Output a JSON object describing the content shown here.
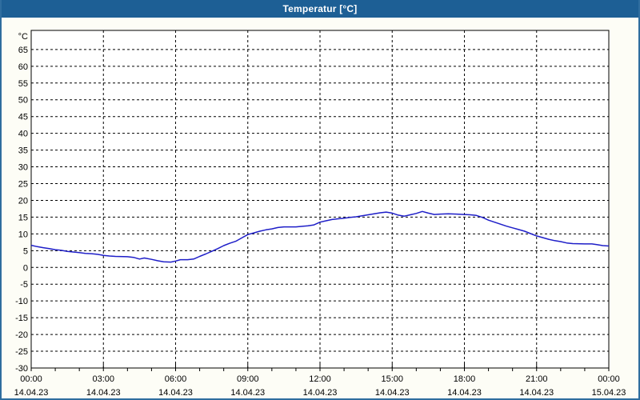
{
  "window": {
    "title": "Temperatur [°C]",
    "title_bar_color": "#1d5f95",
    "frame_border_color": "#2f6d9f",
    "panel_bg": "#fdfdf6"
  },
  "chart_data": {
    "type": "line",
    "title": "Temperatur [°C]",
    "ylabel": "°C",
    "xlabel": "",
    "grid": "dashed-black",
    "legend": "none",
    "plot_bg": "#ffffff",
    "ylim": [
      -30,
      70.7
    ],
    "xlim_hours": [
      0,
      24
    ],
    "y_ticks": [
      65,
      60,
      55,
      50,
      45,
      40,
      35,
      30,
      25,
      20,
      15,
      10,
      5,
      0,
      -5,
      -10,
      -15,
      -20,
      -25,
      -30
    ],
    "x_minor_tick_hours": 1,
    "x_ticks": [
      {
        "hour": 0,
        "time": "00:00",
        "date": "14.04.23"
      },
      {
        "hour": 3,
        "time": "03:00",
        "date": "14.04.23"
      },
      {
        "hour": 6,
        "time": "06:00",
        "date": "14.04.23"
      },
      {
        "hour": 9,
        "time": "09:00",
        "date": "14.04.23"
      },
      {
        "hour": 12,
        "time": "12:00",
        "date": "14.04.23"
      },
      {
        "hour": 15,
        "time": "15:00",
        "date": "14.04.23"
      },
      {
        "hour": 18,
        "time": "18:00",
        "date": "14.04.23"
      },
      {
        "hour": 21,
        "time": "21:00",
        "date": "14.04.23"
      },
      {
        "hour": 24,
        "time": "00:00",
        "date": "15.04.23"
      }
    ],
    "series": [
      {
        "name": "Temperatur",
        "color": "#1e1ec8",
        "points": [
          [
            0,
            6.6
          ],
          [
            0.25,
            6.2
          ],
          [
            0.5,
            5.9
          ],
          [
            0.75,
            5.6
          ],
          [
            1,
            5.3
          ],
          [
            1.25,
            5.1
          ],
          [
            1.5,
            4.8
          ],
          [
            1.75,
            4.6
          ],
          [
            2,
            4.4
          ],
          [
            2.25,
            4.2
          ],
          [
            2.5,
            4.1
          ],
          [
            2.75,
            3.9
          ],
          [
            3,
            3.6
          ],
          [
            3.25,
            3.4
          ],
          [
            3.5,
            3.3
          ],
          [
            4,
            3.2
          ],
          [
            4.25,
            3.0
          ],
          [
            4.5,
            2.5
          ],
          [
            4.7,
            2.8
          ],
          [
            5,
            2.4
          ],
          [
            5.25,
            2.0
          ],
          [
            5.5,
            1.7
          ],
          [
            5.8,
            1.6
          ],
          [
            6,
            1.9
          ],
          [
            6.2,
            2.3
          ],
          [
            6.5,
            2.3
          ],
          [
            6.75,
            2.5
          ],
          [
            7,
            3.3
          ],
          [
            7.25,
            4.0
          ],
          [
            7.5,
            4.8
          ],
          [
            7.75,
            5.6
          ],
          [
            8,
            6.5
          ],
          [
            8.25,
            7.2
          ],
          [
            8.5,
            7.8
          ],
          [
            8.75,
            8.8
          ],
          [
            9,
            9.8
          ],
          [
            9.25,
            10.3
          ],
          [
            9.5,
            10.8
          ],
          [
            9.75,
            11.2
          ],
          [
            10,
            11.5
          ],
          [
            10.25,
            11.9
          ],
          [
            10.5,
            12.1
          ],
          [
            11,
            12.1
          ],
          [
            11.5,
            12.4
          ],
          [
            11.75,
            12.7
          ],
          [
            12,
            13.5
          ],
          [
            12.25,
            13.9
          ],
          [
            12.5,
            14.3
          ],
          [
            12.75,
            14.5
          ],
          [
            13,
            14.7
          ],
          [
            13.25,
            14.9
          ],
          [
            13.5,
            15.1
          ],
          [
            13.75,
            15.4
          ],
          [
            14,
            15.7
          ],
          [
            14.25,
            16.0
          ],
          [
            14.5,
            16.3
          ],
          [
            14.75,
            16.5
          ],
          [
            15,
            16.2
          ],
          [
            15.25,
            15.6
          ],
          [
            15.5,
            15.3
          ],
          [
            15.75,
            15.7
          ],
          [
            16,
            16.1
          ],
          [
            16.25,
            16.7
          ],
          [
            16.5,
            16.2
          ],
          [
            16.75,
            15.8
          ],
          [
            17,
            15.9
          ],
          [
            17.33,
            16.0
          ],
          [
            17.67,
            15.9
          ],
          [
            18,
            15.8
          ],
          [
            18.25,
            15.7
          ],
          [
            18.5,
            15.5
          ],
          [
            18.75,
            14.9
          ],
          [
            19,
            14.1
          ],
          [
            19.25,
            13.5
          ],
          [
            19.5,
            12.9
          ],
          [
            19.75,
            12.3
          ],
          [
            20,
            11.8
          ],
          [
            20.25,
            11.3
          ],
          [
            20.5,
            10.8
          ],
          [
            20.75,
            10.1
          ],
          [
            21,
            9.4
          ],
          [
            21.25,
            8.9
          ],
          [
            21.5,
            8.4
          ],
          [
            21.75,
            8.0
          ],
          [
            22,
            7.7
          ],
          [
            22.25,
            7.3
          ],
          [
            22.5,
            7.1
          ],
          [
            23,
            7.0
          ],
          [
            23.3,
            7.0
          ],
          [
            23.5,
            6.8
          ],
          [
            23.75,
            6.5
          ],
          [
            24,
            6.4
          ]
        ]
      }
    ]
  }
}
